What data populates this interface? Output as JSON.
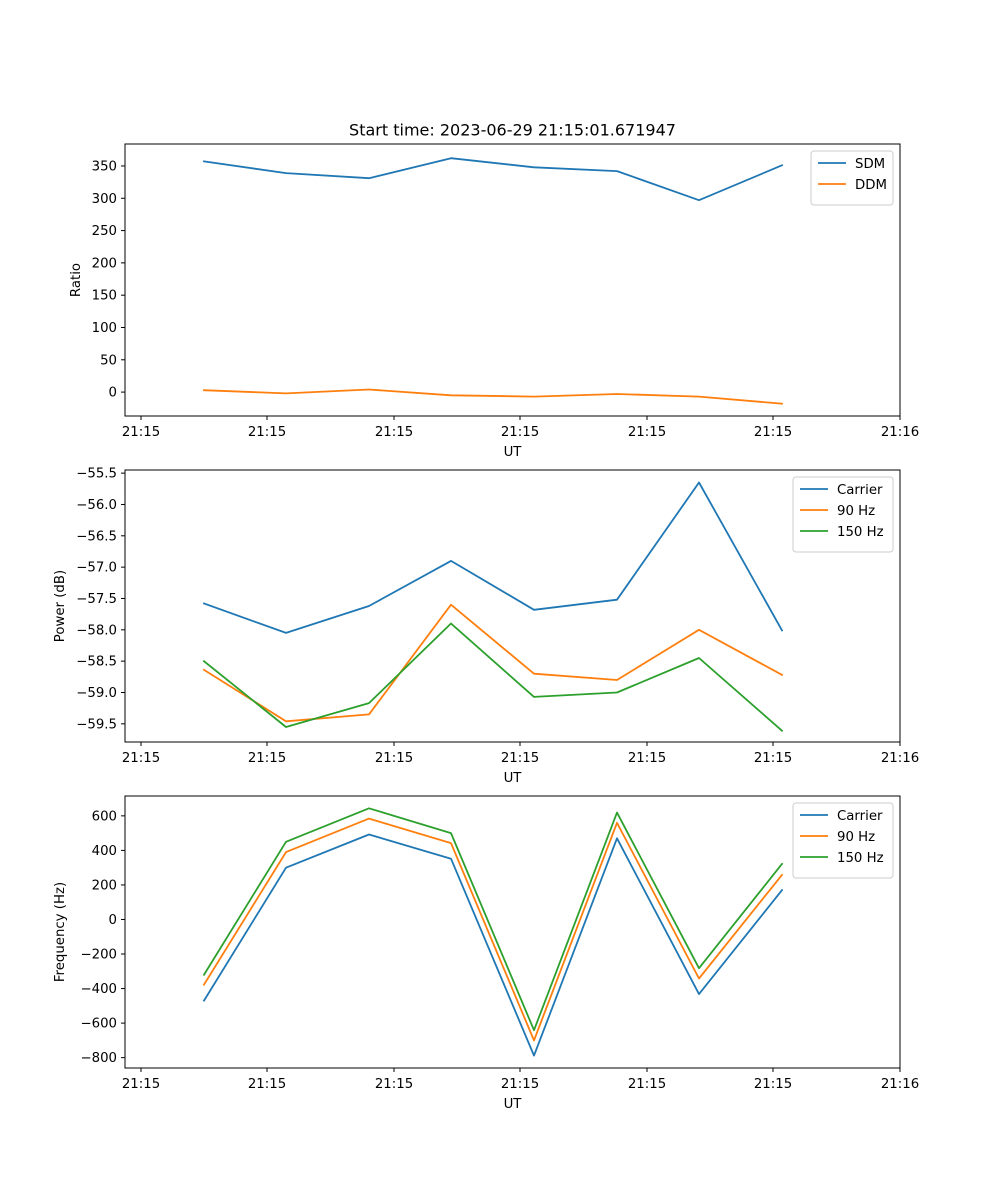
{
  "colors": {
    "C0": "#1f77b4",
    "C1": "#ff7f0e",
    "C2": "#2ca02c"
  },
  "chart_data": [
    {
      "type": "line",
      "title": "Start time: 2023-06-29 21:15:01.671947",
      "xlabel": "UT",
      "ylabel": "Ratio",
      "x_ticks": [
        "21:15",
        "21:15",
        "21:15",
        "21:15",
        "21:15",
        "21:15",
        "21:16"
      ],
      "y_ticks": [
        0,
        50,
        100,
        150,
        200,
        250,
        300,
        350
      ],
      "ylim": [
        -37,
        384
      ],
      "legend_position": "top-right",
      "series": [
        {
          "name": "SDM",
          "color": "#1f77b4",
          "values": [
            357,
            339,
            331,
            362,
            348,
            342,
            297,
            351
          ]
        },
        {
          "name": "DDM",
          "color": "#ff7f0e",
          "values": [
            3,
            -2,
            4,
            -5,
            -7,
            -3,
            -7,
            -18
          ]
        }
      ]
    },
    {
      "type": "line",
      "title": "",
      "xlabel": "UT",
      "ylabel": "Power (dB)",
      "x_ticks": [
        "21:15",
        "21:15",
        "21:15",
        "21:15",
        "21:15",
        "21:15",
        "21:16"
      ],
      "y_ticks": [
        -55.5,
        -56.0,
        -56.5,
        -57.0,
        -57.5,
        -58.0,
        -58.5,
        -59.0,
        -59.5
      ],
      "y_tick_labels": [
        "−55.5",
        "−56.0",
        "−56.5",
        "−57.0",
        "−57.5",
        "−58.0",
        "−58.5",
        "−59.0",
        "−59.5"
      ],
      "ylim": [
        -59.79,
        -55.45
      ],
      "legend_position": "top-right",
      "series": [
        {
          "name": "Carrier",
          "color": "#1f77b4",
          "values": [
            -57.58,
            -58.05,
            -57.62,
            -56.9,
            -57.68,
            -57.52,
            -55.65,
            -58.01
          ]
        },
        {
          "name": "90 Hz",
          "color": "#ff7f0e",
          "values": [
            -58.64,
            -59.46,
            -59.35,
            -57.6,
            -58.7,
            -58.8,
            -58.0,
            -58.72
          ]
        },
        {
          "name": "150 Hz",
          "color": "#2ca02c",
          "values": [
            -58.5,
            -59.55,
            -59.17,
            -57.9,
            -59.07,
            -59.0,
            -58.45,
            -59.61
          ]
        }
      ]
    },
    {
      "type": "line",
      "title": "",
      "xlabel": "UT",
      "ylabel": "Frequency (Hz)",
      "x_ticks": [
        "21:15",
        "21:15",
        "21:15",
        "21:15",
        "21:15",
        "21:15",
        "21:16"
      ],
      "y_ticks": [
        -800,
        -600,
        -400,
        -200,
        0,
        200,
        400,
        600
      ],
      "y_tick_labels": [
        "−800",
        "−600",
        "−400",
        "−200",
        "0",
        "200",
        "400",
        "600"
      ],
      "ylim": [
        -860,
        715
      ],
      "legend_position": "top-right",
      "series": [
        {
          "name": "Carrier",
          "color": "#1f77b4",
          "values": [
            -470,
            300,
            492,
            352,
            -788,
            470,
            -432,
            170
          ]
        },
        {
          "name": "90 Hz",
          "color": "#ff7f0e",
          "values": [
            -377,
            390,
            584,
            442,
            -700,
            560,
            -342,
            258
          ]
        },
        {
          "name": "150 Hz",
          "color": "#2ca02c",
          "values": [
            -320,
            450,
            644,
            500,
            -641,
            619,
            -282,
            322
          ]
        }
      ]
    }
  ]
}
